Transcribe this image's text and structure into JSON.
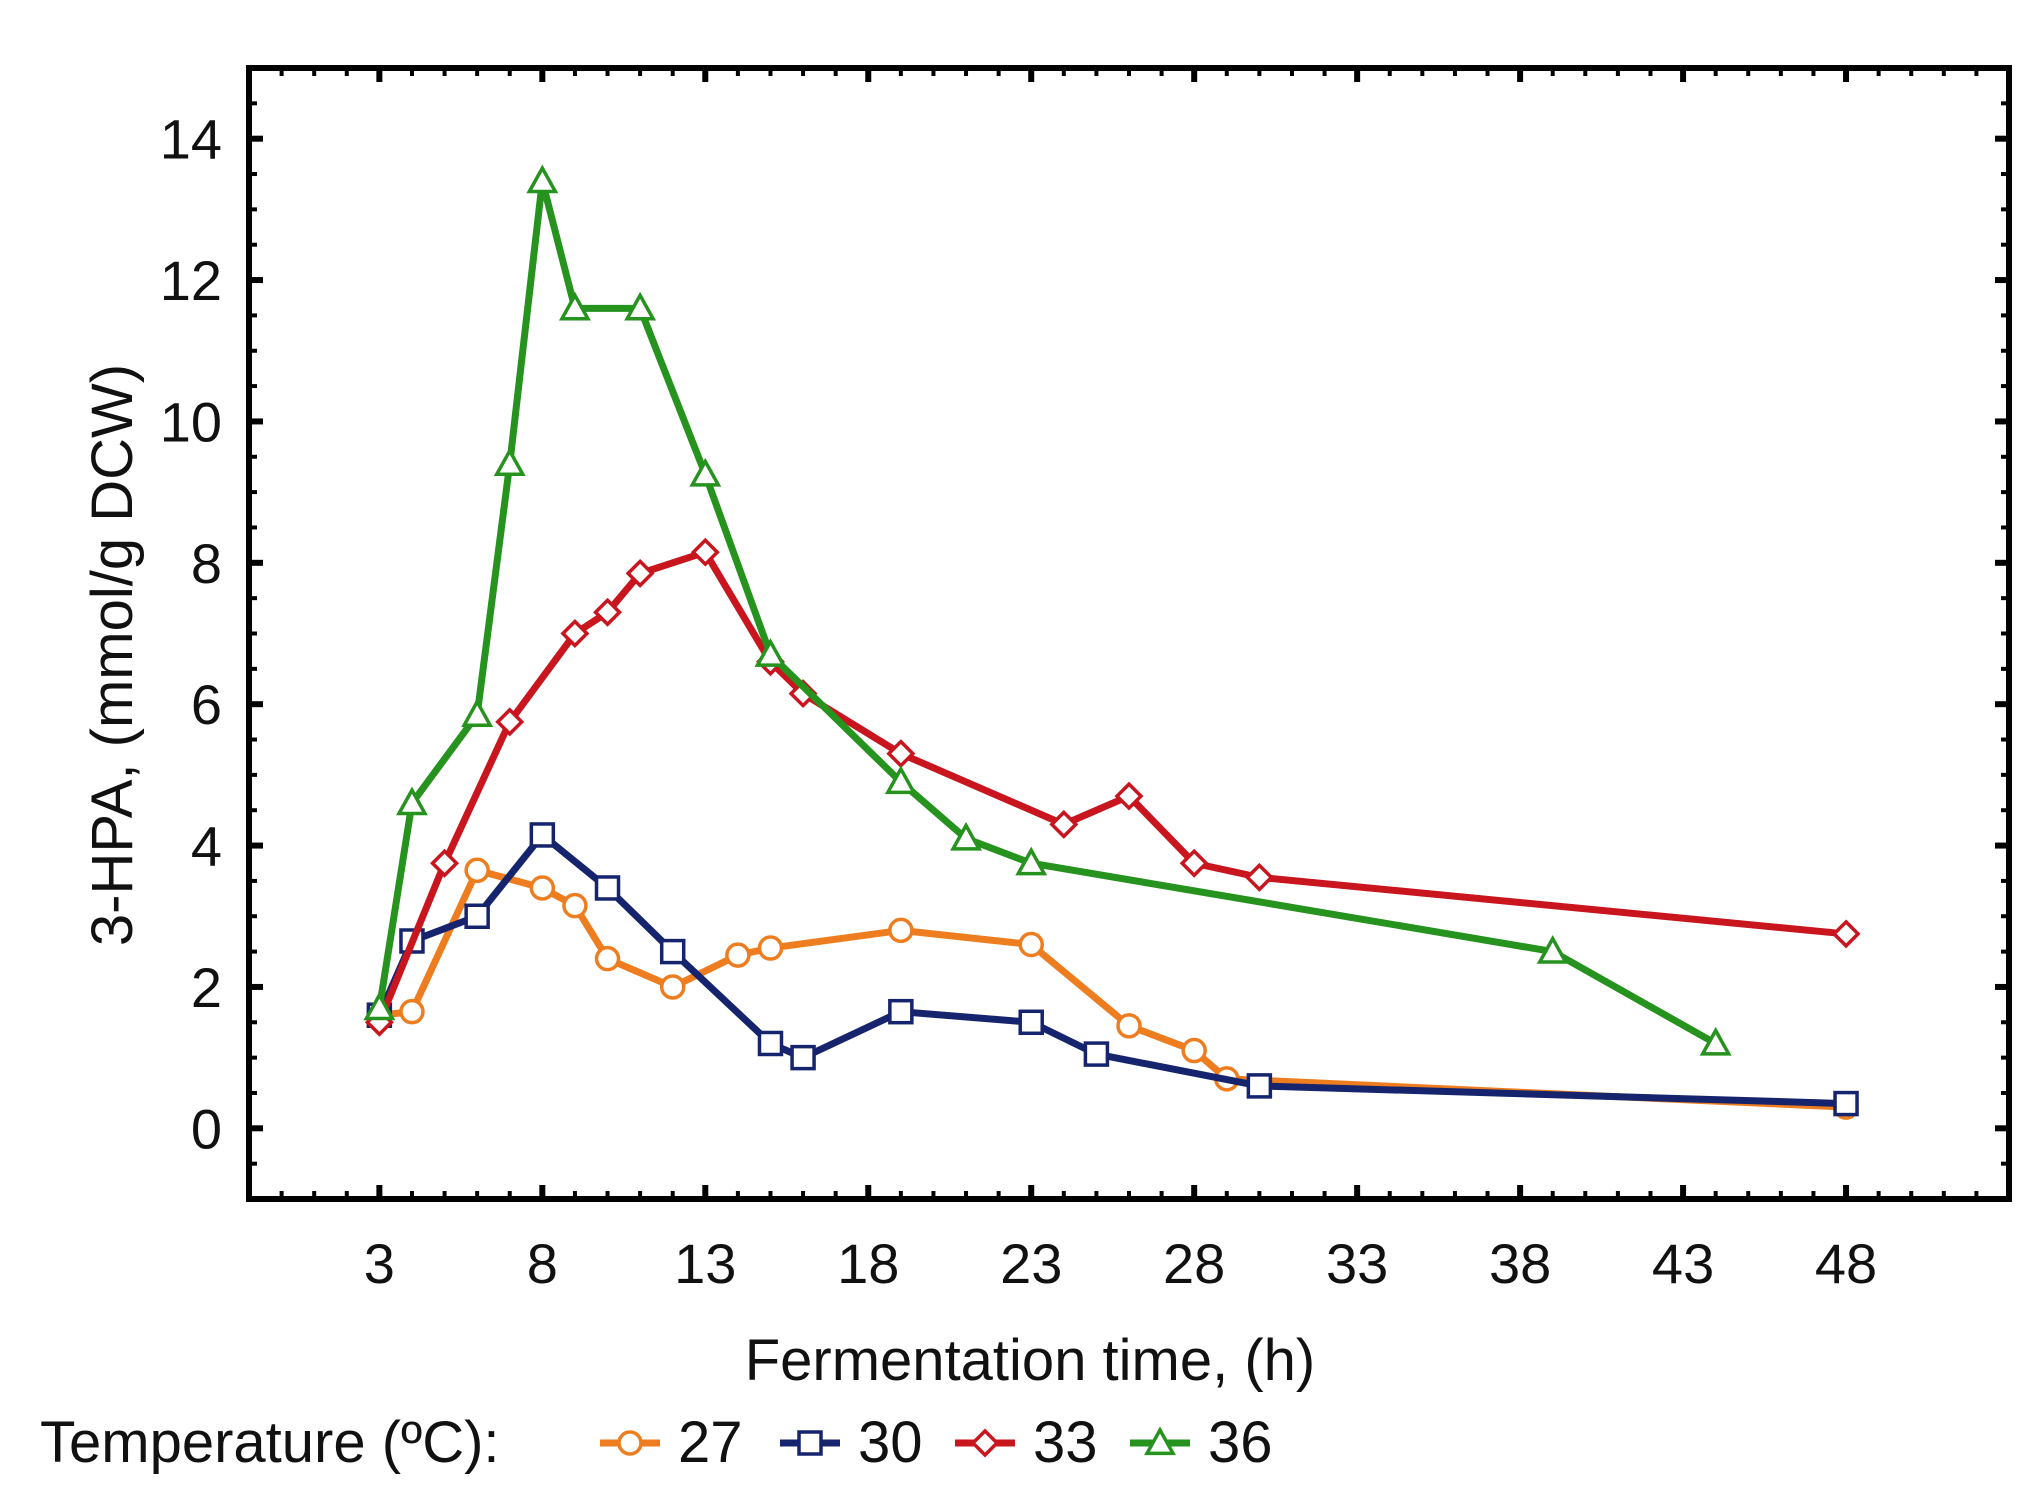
{
  "chart_data": {
    "type": "line",
    "title": "",
    "xlabel": "Fermentation time, (h)",
    "ylabel": "3-HPA, (mmol/g DCW)",
    "xlim": [
      -1,
      53
    ],
    "ylim": [
      -1,
      15
    ],
    "xticks": [
      3,
      8,
      13,
      18,
      23,
      28,
      33,
      38,
      43,
      48
    ],
    "xtick_labels": [
      "3",
      "8",
      "13",
      "18",
      "23",
      "28",
      "33",
      "38",
      "43",
      "48"
    ],
    "yticks": [
      0,
      2,
      4,
      6,
      8,
      10,
      12,
      14
    ],
    "ytick_labels": [
      "0",
      "2",
      "4",
      "6",
      "8",
      "10",
      "12",
      "14"
    ],
    "grid": false,
    "legend": {
      "title": "Temperature (ºC):",
      "position": "bottom"
    },
    "series": [
      {
        "name": "27",
        "color": "#EE7D1F",
        "marker": "circle",
        "x": [
          3,
          4,
          6,
          8,
          9,
          10,
          12,
          14,
          15,
          19,
          23,
          26,
          28,
          29,
          48
        ],
        "y": [
          1.6,
          1.65,
          3.65,
          3.4,
          3.15,
          2.4,
          2.0,
          2.45,
          2.55,
          2.8,
          2.6,
          1.45,
          1.1,
          0.7,
          0.3
        ]
      },
      {
        "name": "30",
        "color": "#16246E",
        "marker": "square",
        "x": [
          3,
          4,
          6,
          8,
          10,
          12,
          15,
          16,
          19,
          23,
          25,
          30,
          48
        ],
        "y": [
          1.6,
          2.65,
          3.0,
          4.15,
          3.4,
          2.5,
          1.2,
          1.0,
          1.65,
          1.5,
          1.05,
          0.6,
          0.35
        ]
      },
      {
        "name": "33",
        "color": "#C9151E",
        "marker": "diamond",
        "x": [
          3,
          5,
          7,
          9,
          10,
          11,
          13,
          15,
          16,
          19,
          24,
          26,
          28,
          30,
          48
        ],
        "y": [
          1.5,
          3.75,
          5.75,
          7.0,
          7.3,
          7.85,
          8.15,
          6.6,
          6.15,
          5.3,
          4.3,
          4.7,
          3.75,
          3.55,
          2.75
        ]
      },
      {
        "name": "36",
        "color": "#25931D",
        "marker": "triangle",
        "x": [
          3,
          4,
          6,
          7,
          8,
          9,
          11,
          13,
          15,
          19,
          21,
          23,
          39,
          44
        ],
        "y": [
          1.7,
          4.6,
          5.85,
          9.4,
          13.4,
          11.6,
          11.6,
          9.25,
          6.7,
          4.9,
          4.1,
          3.75,
          2.5,
          1.2
        ]
      }
    ]
  }
}
